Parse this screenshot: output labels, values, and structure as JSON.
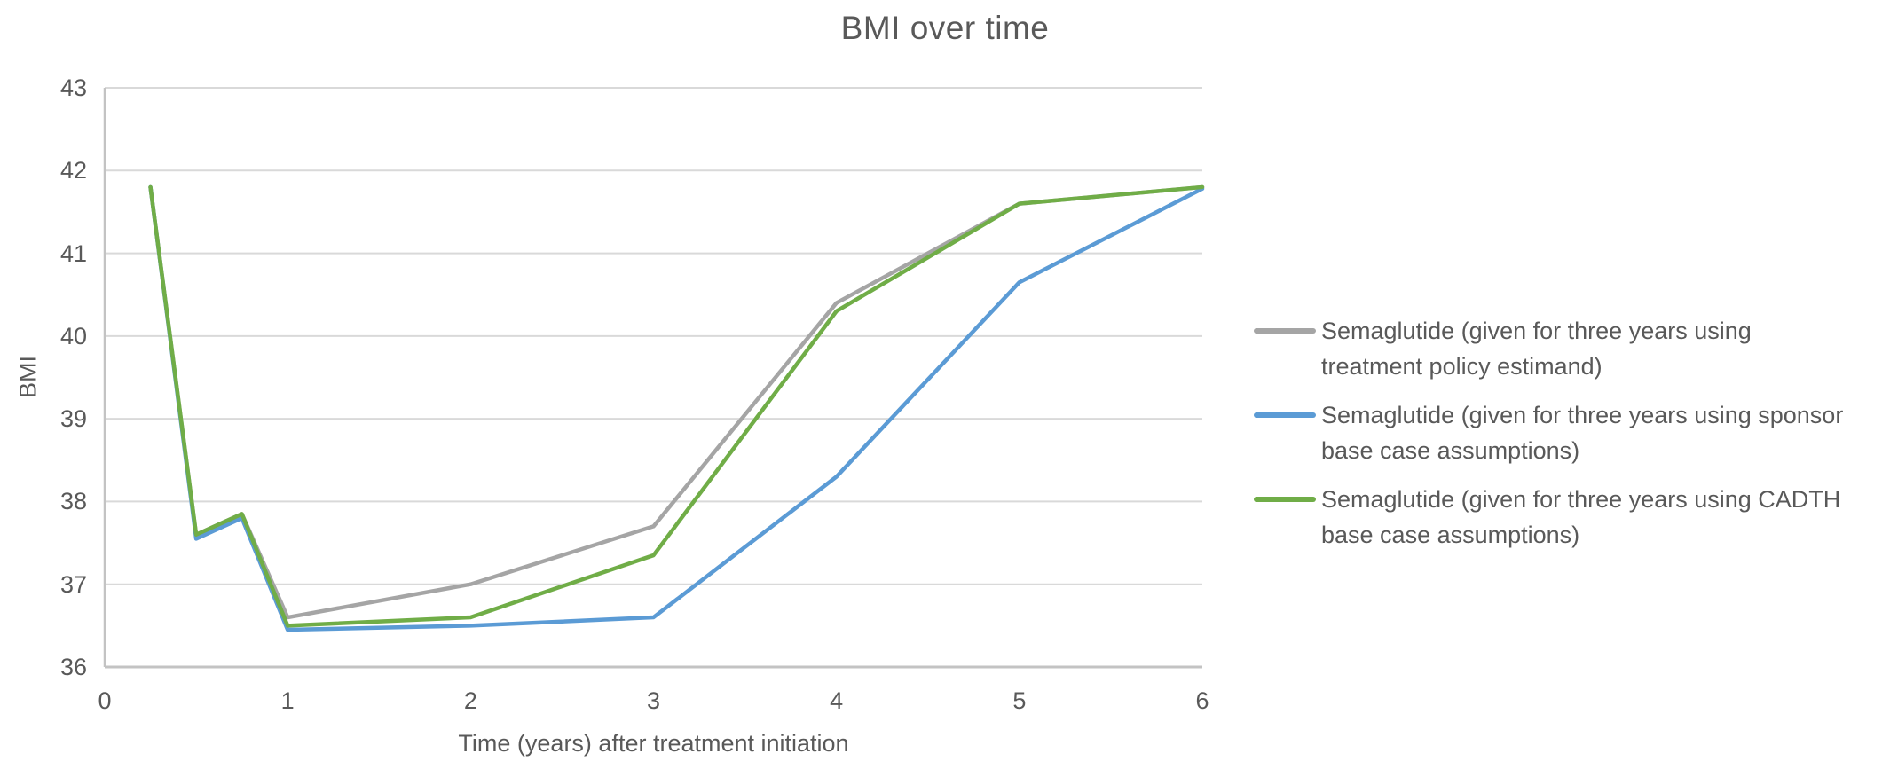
{
  "chart_data": {
    "type": "line",
    "title": "BMI over time",
    "xlabel": "Time (years) after treatment initiation",
    "ylabel": "BMI",
    "xlim": [
      0,
      6
    ],
    "ylim": [
      36,
      43
    ],
    "x_ticks": [
      0,
      1,
      2,
      3,
      4,
      5,
      6
    ],
    "y_ticks": [
      36,
      37,
      38,
      39,
      40,
      41,
      42,
      43
    ],
    "grid": "horizontal",
    "legend_position": "right",
    "x": [
      0.25,
      0.5,
      0.75,
      1,
      2,
      3,
      4,
      5,
      6
    ],
    "series": [
      {
        "name": "Semaglutide (given for three years using treatment policy estimand)",
        "color": "#A5A5A5",
        "values": [
          41.8,
          37.6,
          37.85,
          36.6,
          37.0,
          37.7,
          40.4,
          41.6,
          41.8
        ]
      },
      {
        "name": "Semaglutide (given for three years using sponsor base case assumptions)",
        "color": "#5B9BD5",
        "values": [
          41.8,
          37.55,
          37.8,
          36.45,
          36.5,
          36.6,
          38.3,
          40.65,
          41.78
        ]
      },
      {
        "name": "Semaglutide (given for three years using CADTH base case assumptions)",
        "color": "#70AD47",
        "values": [
          41.8,
          37.6,
          37.85,
          36.5,
          36.6,
          37.35,
          40.3,
          41.6,
          41.8
        ]
      }
    ],
    "style_colors": {
      "text": "#595959",
      "gridline": "#D9D9D9",
      "axis_line": "#C3C3C3"
    }
  },
  "legend": {
    "entries": [
      {
        "color": "#A5A5A5",
        "lines": [
          "Semaglutide (given for three years using",
          "treatment policy estimand)"
        ]
      },
      {
        "color": "#5B9BD5",
        "lines": [
          "Semaglutide (given for three years using sponsor",
          "base case assumptions)"
        ]
      },
      {
        "color": "#70AD47",
        "lines": [
          "Semaglutide (given for three years using CADTH",
          "base case assumptions)"
        ]
      }
    ]
  }
}
